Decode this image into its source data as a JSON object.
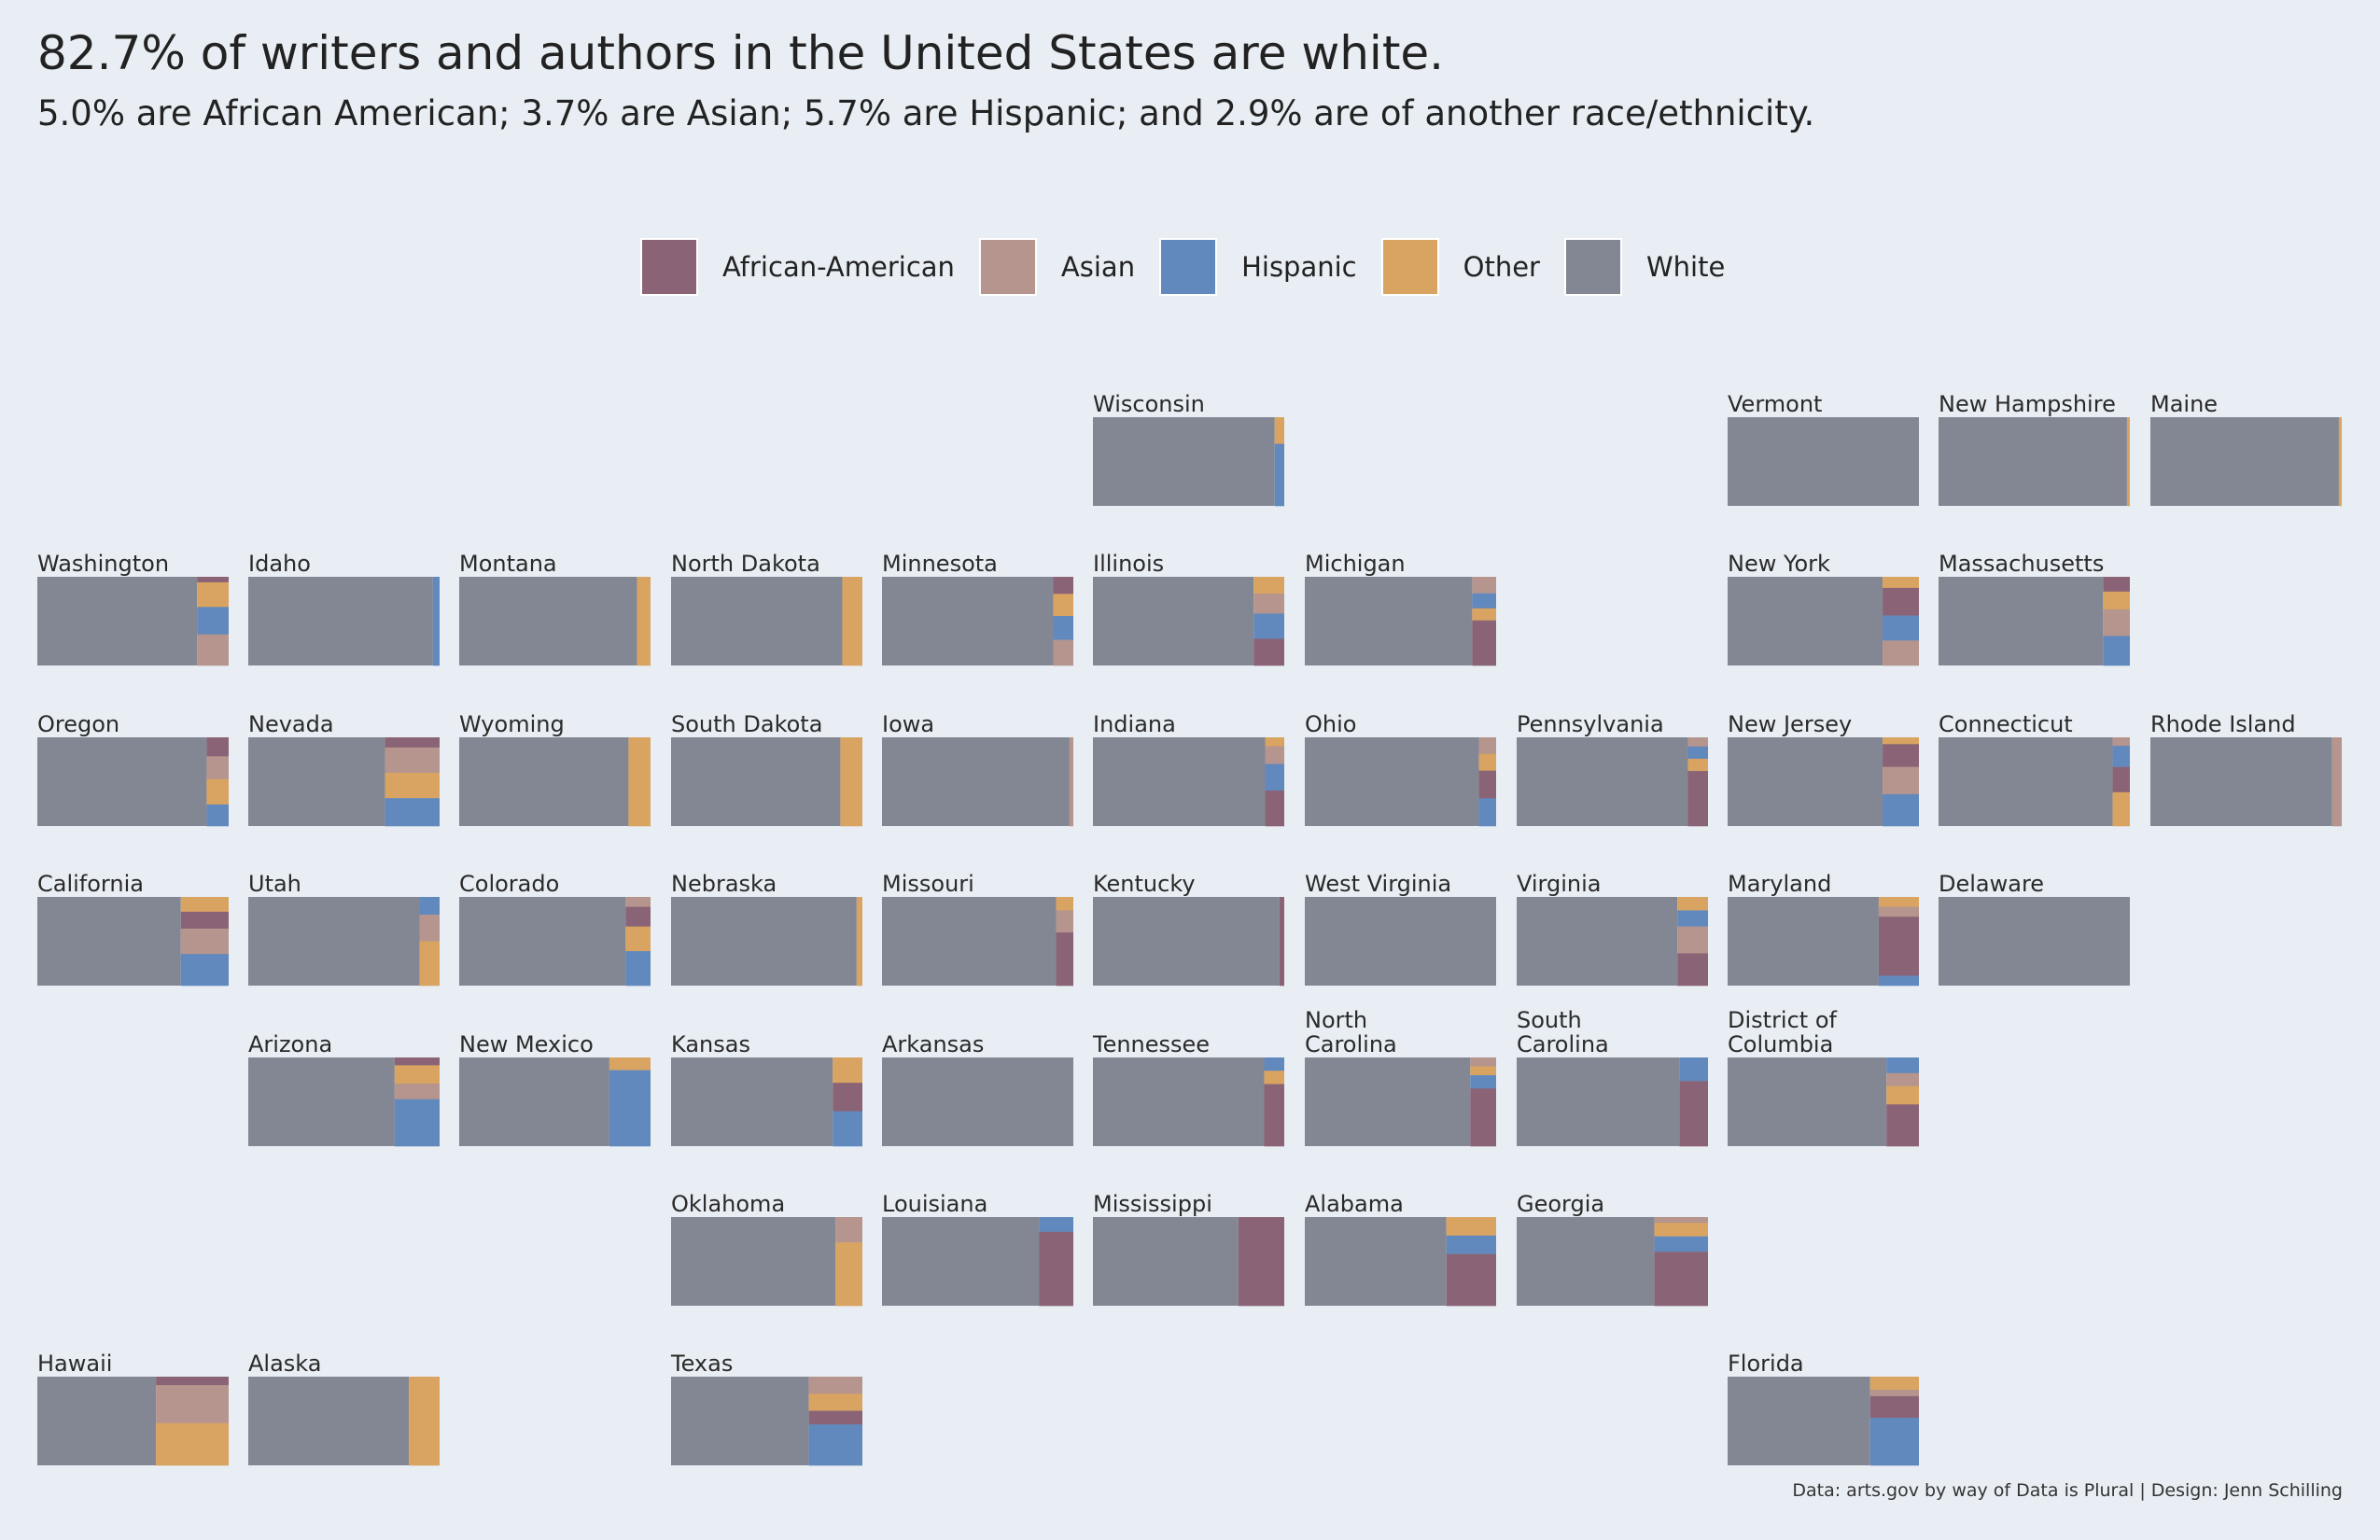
{
  "title": "82.7% of writers and authors in the United States are white.",
  "subtitle": "5.0% are African American; 3.7% are Asian; 5.7% are Hispanic; and 2.9% are of another race/ethnicity.",
  "caption": "Data: arts.gov by way of Data is Plural | Design: Jenn Schilling",
  "legend": [
    {
      "key": "aa",
      "label": "African-American",
      "color": "#8a6476"
    },
    {
      "key": "asian",
      "label": "Asian",
      "color": "#b5958d"
    },
    {
      "key": "hisp",
      "label": "Hispanic",
      "color": "#6289bd"
    },
    {
      "key": "other",
      "label": "Other",
      "color": "#d9a462"
    },
    {
      "key": "white",
      "label": "White",
      "color": "#838794"
    }
  ],
  "chart_data": {
    "type": "bar",
    "description_of_encoding": "tile grid map; each state tile is a horizontal stacked bar of percentage shares",
    "order": [
      "white",
      "aa",
      "asian",
      "other",
      "hisp"
    ],
    "states": [
      {
        "name": "Wisconsin",
        "col": 5,
        "row": 0,
        "white": 95.0,
        "aa": 0,
        "asian": 0,
        "other": 1.5,
        "hisp": 3.5,
        "stack": [
          "other",
          "hisp"
        ]
      },
      {
        "name": "Vermont",
        "col": 8,
        "row": 0,
        "white": 100,
        "aa": 0,
        "asian": 0,
        "other": 0,
        "hisp": 0,
        "stack": []
      },
      {
        "name": "New Hampshire",
        "col": 9,
        "row": 0,
        "white": 98.5,
        "aa": 0,
        "asian": 0,
        "other": 1.5,
        "hisp": 0,
        "stack": [
          "other"
        ]
      },
      {
        "name": "Maine",
        "col": 10,
        "row": 0,
        "white": 98.5,
        "aa": 0,
        "asian": 0,
        "other": 1.5,
        "hisp": 0,
        "stack": [
          "other"
        ]
      },
      {
        "name": "Washington",
        "col": 0,
        "row": 1,
        "white": 83.5,
        "aa": 3.0,
        "asian": 17.0,
        "other": 13.5,
        "hisp": 15.0,
        "stack": [
          "aa",
          "other",
          "hisp",
          "asian"
        ]
      },
      {
        "name": "Idaho",
        "col": 1,
        "row": 1,
        "white": 96.5,
        "aa": 0,
        "asian": 0,
        "other": 0,
        "hisp": 3.5,
        "stack": [
          "hisp"
        ]
      },
      {
        "name": "Montana",
        "col": 2,
        "row": 1,
        "white": 93.0,
        "aa": 0,
        "asian": 0,
        "other": 7.0,
        "hisp": 0,
        "stack": [
          "other"
        ]
      },
      {
        "name": "North Dakota",
        "col": 3,
        "row": 1,
        "white": 89.5,
        "aa": 0,
        "asian": 0,
        "other": 10.5,
        "hisp": 0,
        "stack": [
          "other"
        ]
      },
      {
        "name": "Minnesota",
        "col": 4,
        "row": 1,
        "white": 89.5,
        "aa": 10.0,
        "asian": 15.0,
        "other": 13.0,
        "hisp": 14.0,
        "stack": [
          "aa",
          "other",
          "hisp",
          "asian"
        ]
      },
      {
        "name": "Illinois",
        "col": 5,
        "row": 1,
        "white": 84.0,
        "aa": 16.0,
        "asian": 12.0,
        "other": 10.0,
        "hisp": 15.0,
        "stack": [
          "other",
          "asian",
          "hisp",
          "aa"
        ]
      },
      {
        "name": "Michigan",
        "col": 6,
        "row": 1,
        "white": 87.5,
        "aa": 30.0,
        "asian": 11.0,
        "other": 8.0,
        "hisp": 10.0,
        "stack": [
          "asian",
          "hisp",
          "other",
          "aa"
        ]
      },
      {
        "name": "New York",
        "col": 8,
        "row": 1,
        "white": 81.0,
        "aa": 20.0,
        "asian": 18.0,
        "other": 8.0,
        "hisp": 18.0,
        "stack": [
          "other",
          "aa",
          "hisp",
          "asian"
        ]
      },
      {
        "name": "Massachusetts",
        "col": 9,
        "row": 1,
        "white": 86.0,
        "aa": 10.0,
        "asian": 18.0,
        "other": 12.0,
        "hisp": 20.0,
        "stack": [
          "aa",
          "other",
          "asian",
          "hisp"
        ]
      },
      {
        "name": "Oregon",
        "col": 0,
        "row": 2,
        "white": 88.5,
        "aa": 15.0,
        "asian": 18.0,
        "other": 20.0,
        "hisp": 17.0,
        "stack": [
          "aa",
          "asian",
          "other",
          "hisp"
        ]
      },
      {
        "name": "Nevada",
        "col": 1,
        "row": 2,
        "white": 71.5,
        "aa": 8.0,
        "asian": 20.0,
        "other": 20.0,
        "hisp": 22.0,
        "stack": [
          "aa",
          "asian",
          "other",
          "hisp"
        ]
      },
      {
        "name": "Wyoming",
        "col": 2,
        "row": 2,
        "white": 88.5,
        "aa": 0,
        "asian": 0,
        "other": 11.5,
        "hisp": 0,
        "stack": [
          "other"
        ]
      },
      {
        "name": "South Dakota",
        "col": 3,
        "row": 2,
        "white": 88.5,
        "aa": 0,
        "asian": 0,
        "other": 11.5,
        "hisp": 0,
        "stack": [
          "other"
        ]
      },
      {
        "name": "Iowa",
        "col": 4,
        "row": 2,
        "white": 98.0,
        "aa": 0,
        "asian": 2.0,
        "other": 0,
        "hisp": 0,
        "stack": [
          "asian"
        ]
      },
      {
        "name": "Indiana",
        "col": 5,
        "row": 2,
        "white": 90.0,
        "aa": 20.0,
        "asian": 10.0,
        "other": 5.0,
        "hisp": 15.0,
        "stack": [
          "other",
          "asian",
          "hisp",
          "aa"
        ]
      },
      {
        "name": "Ohio",
        "col": 6,
        "row": 2,
        "white": 91.0,
        "aa": 10.0,
        "asian": 6.0,
        "other": 6.0,
        "hisp": 10.0,
        "stack": [
          "asian",
          "other",
          "aa",
          "hisp"
        ]
      },
      {
        "name": "Pennsylvania",
        "col": 7,
        "row": 2,
        "white": 89.5,
        "aa": 18.0,
        "asian": 3.0,
        "other": 4.0,
        "hisp": 4.0,
        "stack": [
          "asian",
          "hisp",
          "other",
          "aa"
        ]
      },
      {
        "name": "New Jersey",
        "col": 8,
        "row": 2,
        "white": 81.0,
        "aa": 10.0,
        "asian": 12.0,
        "other": 3.0,
        "hisp": 14.0,
        "stack": [
          "other",
          "aa",
          "asian",
          "hisp"
        ]
      },
      {
        "name": "Connecticut",
        "col": 9,
        "row": 2,
        "white": 91.0,
        "aa": 6.0,
        "asian": 2.0,
        "other": 8.0,
        "hisp": 5.0,
        "stack": [
          "asian",
          "hisp",
          "aa",
          "other"
        ]
      },
      {
        "name": "Rhode Island",
        "col": 10,
        "row": 2,
        "white": 95.0,
        "aa": 0,
        "asian": 5.0,
        "other": 0,
        "hisp": 0,
        "stack": [
          "asian"
        ]
      },
      {
        "name": "California",
        "col": 0,
        "row": 3,
        "white": 75.0,
        "aa": 8.0,
        "asian": 12.0,
        "other": 7.0,
        "hisp": 15.0,
        "stack": [
          "other",
          "aa",
          "asian",
          "hisp"
        ]
      },
      {
        "name": "Utah",
        "col": 1,
        "row": 3,
        "white": 89.5,
        "aa": 0,
        "asian": 6.0,
        "other": 10.0,
        "hisp": 4.0,
        "stack": [
          "hisp",
          "asian",
          "other"
        ]
      },
      {
        "name": "Colorado",
        "col": 2,
        "row": 3,
        "white": 87.0,
        "aa": 4.0,
        "asian": 2.0,
        "other": 5.0,
        "hisp": 7.0,
        "stack": [
          "asian",
          "aa",
          "other",
          "hisp"
        ]
      },
      {
        "name": "Nebraska",
        "col": 3,
        "row": 3,
        "white": 97.0,
        "aa": 0,
        "asian": 0,
        "other": 3.0,
        "hisp": 0,
        "stack": [
          "other"
        ]
      },
      {
        "name": "Missouri",
        "col": 4,
        "row": 3,
        "white": 91.0,
        "aa": 6.0,
        "asian": 2.5,
        "other": 1.5,
        "hisp": 0,
        "stack": [
          "other",
          "asian",
          "aa"
        ]
      },
      {
        "name": "Kentucky",
        "col": 5,
        "row": 3,
        "white": 97.5,
        "aa": 2.5,
        "asian": 0,
        "other": 0,
        "hisp": 0,
        "stack": [
          "aa"
        ]
      },
      {
        "name": "West Virginia",
        "col": 6,
        "row": 3,
        "white": 100,
        "aa": 0,
        "asian": 0,
        "other": 0,
        "hisp": 0,
        "stack": []
      },
      {
        "name": "Virginia",
        "col": 7,
        "row": 3,
        "white": 84.0,
        "aa": 6.0,
        "asian": 5.0,
        "other": 2.5,
        "hisp": 3.0,
        "stack": [
          "other",
          "hisp",
          "asian",
          "aa"
        ]
      },
      {
        "name": "Maryland",
        "col": 8,
        "row": 3,
        "white": 79.0,
        "aa": 12.0,
        "asian": 2.0,
        "other": 2.0,
        "hisp": 2.0,
        "stack": [
          "other",
          "asian",
          "aa",
          "hisp"
        ]
      },
      {
        "name": "Delaware",
        "col": 9,
        "row": 3,
        "white": 100,
        "aa": 0,
        "asian": 0,
        "other": 0,
        "hisp": 0,
        "stack": []
      },
      {
        "name": "Arizona",
        "col": 1,
        "row": 4,
        "white": 76.5,
        "aa": 1.5,
        "asian": 3.0,
        "other": 3.5,
        "hisp": 9.0,
        "stack": [
          "aa",
          "other",
          "asian",
          "hisp"
        ]
      },
      {
        "name": "New Mexico",
        "col": 2,
        "row": 4,
        "white": 78.5,
        "aa": 0,
        "asian": 0,
        "other": 2.5,
        "hisp": 15.0,
        "stack": [
          "other",
          "hisp"
        ]
      },
      {
        "name": "Kansas",
        "col": 3,
        "row": 4,
        "white": 84.5,
        "aa": 4.5,
        "asian": 0,
        "other": 4.0,
        "hisp": 5.5,
        "stack": [
          "other",
          "aa",
          "hisp"
        ]
      },
      {
        "name": "Arkansas",
        "col": 4,
        "row": 4,
        "white": 100,
        "aa": 0,
        "asian": 0,
        "other": 0,
        "hisp": 0,
        "stack": []
      },
      {
        "name": "Tennessee",
        "col": 5,
        "row": 4,
        "white": 89.5,
        "aa": 7.0,
        "asian": 0,
        "other": 1.5,
        "hisp": 1.5,
        "stack": [
          "hisp",
          "other",
          "aa"
        ]
      },
      {
        "name": "North Carolina",
        "col": 6,
        "row": 4,
        "white": 86.5,
        "aa": 6.5,
        "asian": 1.0,
        "other": 1.0,
        "hisp": 1.5,
        "stack": [
          "asian",
          "other",
          "hisp",
          "aa"
        ]
      },
      {
        "name": "South Carolina",
        "col": 7,
        "row": 4,
        "white": 85.0,
        "aa": 11.0,
        "asian": 0,
        "other": 0,
        "hisp": 4.0,
        "stack": [
          "hisp",
          "aa"
        ]
      },
      {
        "name": "District of Columbia",
        "col": 8,
        "row": 4,
        "white": 83.0,
        "aa": 8.0,
        "asian": 2.5,
        "other": 3.5,
        "hisp": 3.0,
        "stack": [
          "hisp",
          "asian",
          "other",
          "aa"
        ]
      },
      {
        "name": "Oklahoma",
        "col": 3,
        "row": 5,
        "white": 86.0,
        "aa": 0,
        "asian": 4.0,
        "other": 10.0,
        "hisp": 0,
        "stack": [
          "asian",
          "other"
        ]
      },
      {
        "name": "Louisiana",
        "col": 4,
        "row": 5,
        "white": 82.0,
        "aa": 15.0,
        "asian": 0,
        "other": 0,
        "hisp": 3.0,
        "stack": [
          "hisp",
          "aa"
        ]
      },
      {
        "name": "Mississippi",
        "col": 5,
        "row": 5,
        "white": 76.0,
        "aa": 24.0,
        "asian": 0,
        "other": 0,
        "hisp": 0,
        "stack": [
          "aa"
        ]
      },
      {
        "name": "Alabama",
        "col": 6,
        "row": 5,
        "white": 74.0,
        "aa": 14.0,
        "asian": 0,
        "other": 5.0,
        "hisp": 5.0,
        "stack": [
          "other",
          "hisp",
          "aa"
        ]
      },
      {
        "name": "Georgia",
        "col": 7,
        "row": 5,
        "white": 72.0,
        "aa": 14.0,
        "asian": 1.5,
        "other": 3.5,
        "hisp": 4.0,
        "stack": [
          "asian",
          "other",
          "hisp",
          "aa"
        ]
      },
      {
        "name": "Hawaii",
        "col": 0,
        "row": 6,
        "white": 62.0,
        "aa": 2.0,
        "asian": 9.0,
        "other": 10.0,
        "hisp": 0,
        "stack": [
          "aa",
          "asian",
          "other"
        ]
      },
      {
        "name": "Alaska",
        "col": 1,
        "row": 6,
        "white": 84.0,
        "aa": 0,
        "asian": 0,
        "other": 16.0,
        "hisp": 0,
        "stack": [
          "other"
        ]
      },
      {
        "name": "Texas",
        "col": 3,
        "row": 6,
        "white": 72.0,
        "aa": 4.0,
        "asian": 5.0,
        "other": 5.0,
        "hisp": 12.0,
        "stack": [
          "asian",
          "other",
          "aa",
          "hisp"
        ]
      },
      {
        "name": "Florida",
        "col": 8,
        "row": 6,
        "white": 74.5,
        "aa": 5.0,
        "asian": 1.5,
        "other": 3.0,
        "hisp": 11.0,
        "stack": [
          "other",
          "asian",
          "aa",
          "hisp"
        ]
      }
    ]
  }
}
